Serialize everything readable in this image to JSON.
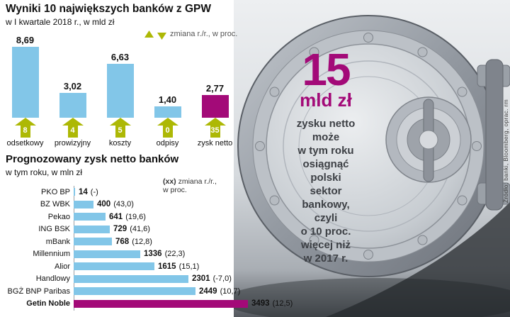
{
  "page": {
    "source_credit": "Źródło: banki, Bloomberg, oprac. rm"
  },
  "colors": {
    "bar_blue": "#82c6e8",
    "accent_magenta": "#a30a78",
    "arrow_olive": "#adb805"
  },
  "chart_data": [
    {
      "type": "bar",
      "orientation": "vertical",
      "title": "Wyniki 10 największych banków z GPW",
      "subtitle": "w I kwartale 2018 r., w mld zł",
      "legend_note": "zmiana r./r., w proc.",
      "categories": [
        "odsetkowy",
        "prowizyjny",
        "koszty",
        "odpisy",
        "zysk netto"
      ],
      "values": [
        8.69,
        3.02,
        6.63,
        1.4,
        2.77
      ],
      "value_labels": [
        "8,69",
        "3,02",
        "6,63",
        "1,40",
        "2,77"
      ],
      "changes": [
        8,
        4,
        5,
        0,
        35
      ],
      "changes_display": [
        "8",
        "4",
        "5",
        "0",
        "35"
      ],
      "ylim": [
        0,
        8.69
      ],
      "unit": "mld zł",
      "highlight_category": "zysk netto",
      "grid": false
    },
    {
      "type": "bar",
      "orientation": "horizontal",
      "title": "Prognozowany zysk netto banków",
      "subtitle": "w tym roku, w mln zł",
      "note": "(xx) zmiana r./r., w proc.",
      "categories": [
        "PKO BP",
        "BZ WBK",
        "Pekao",
        "ING BSK",
        "mBank",
        "Millennium",
        "Alior",
        "Handlowy",
        "BGŻ BNP Paribas",
        "Getin Noble"
      ],
      "values": [
        14,
        400,
        641,
        729,
        768,
        1336,
        1615,
        2301,
        2449,
        3493
      ],
      "value_labels": [
        "14",
        "400",
        "641",
        "729",
        "768",
        "1336",
        "1615",
        "2301",
        "2449",
        "3493"
      ],
      "change_labels": [
        "(-)",
        "(43,0)",
        "(19,6)",
        "(41,6)",
        "(12,8)",
        "(22,3)",
        "(15,1)",
        "(-7,0)",
        "(10,7)",
        "(12,5)"
      ],
      "xlim": [
        0,
        3500
      ],
      "unit": "mln zł",
      "highlight_category": "Getin Noble",
      "grid": false
    }
  ],
  "vault": {
    "big_number": "15",
    "unit": "mld zł",
    "description_lines": [
      "zysku netto",
      "może",
      "w tym roku",
      "osiągnąć",
      "polski",
      "sektor",
      "bankowy,",
      "czyli",
      "o 10 proc.",
      "więcej niż",
      "w 2017 r."
    ]
  },
  "ui": {
    "legend_note": "zmiana r./r., w proc.",
    "note_prefix": "(xx)",
    "note_line1": " zmiana r./r.,",
    "note_line2": "w proc."
  }
}
